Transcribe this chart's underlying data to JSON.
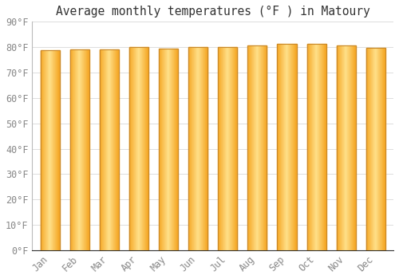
{
  "title": "Average monthly temperatures (°F ) in Matoury",
  "months": [
    "Jan",
    "Feb",
    "Mar",
    "Apr",
    "May",
    "Jun",
    "Jul",
    "Aug",
    "Sep",
    "Oct",
    "Nov",
    "Dec"
  ],
  "values": [
    78.8,
    79.0,
    79.0,
    80.1,
    79.5,
    80.1,
    80.1,
    80.8,
    81.3,
    81.3,
    80.8,
    79.7
  ],
  "bar_color_center": "#FFE08A",
  "bar_color_edge": "#F5A623",
  "bar_border_color": "#C8882A",
  "background_color": "#FFFFFF",
  "plot_bg_color": "#FFFFFF",
  "grid_color": "#DDDDDD",
  "tick_color": "#888888",
  "title_fontsize": 10.5,
  "tick_fontsize": 8.5,
  "ylim": [
    0,
    90
  ],
  "yticks": [
    0,
    10,
    20,
    30,
    40,
    50,
    60,
    70,
    80,
    90
  ],
  "ytick_labels": [
    "0°F",
    "10°F",
    "20°F",
    "30°F",
    "40°F",
    "50°F",
    "60°F",
    "70°F",
    "80°F",
    "90°F"
  ]
}
